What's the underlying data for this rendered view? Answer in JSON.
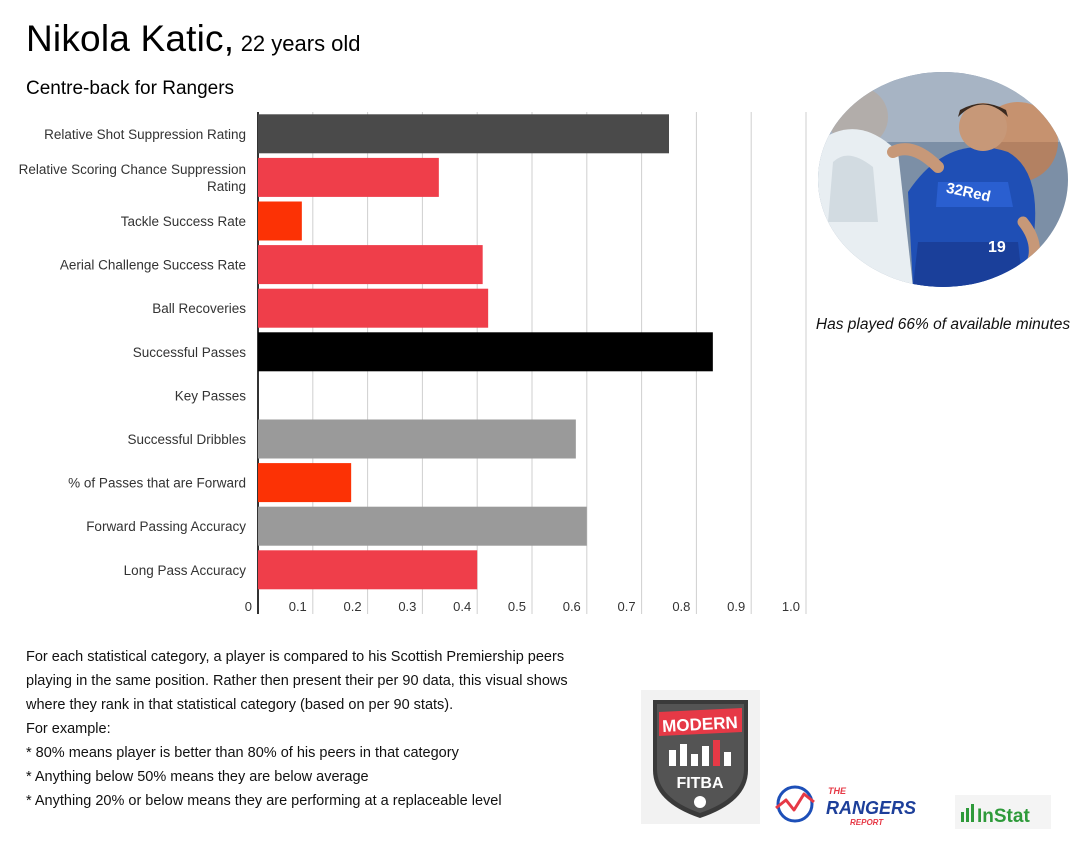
{
  "header": {
    "player_name": "Nikola Katic,",
    "player_age": "22 years old",
    "subtitle": "Centre-back for Rangers"
  },
  "sidebar": {
    "minutes_note": "Has played 66% of available minutes"
  },
  "footer": {
    "explanation_lines": [
      "For each statistical category, a player is compared to his Scottish Premiership peers",
      "playing in the same position.  Rather then present their per 90 data, this visual shows",
      "where they rank in that statistical category (based on per 90 stats).",
      "For example:",
      "* 80% means player is better than 80% of his peers in that category",
      "* Anything below 50% means they are below average",
      "* Anything 20% or below means they are performing at a replaceable level"
    ]
  },
  "logos": {
    "modern_fitba_top": "MODERN",
    "modern_fitba_bottom": "FITBA",
    "rangers_report_top": "THE",
    "rangers_report_main": "RANGERS",
    "rangers_report_bottom": "REPORT",
    "instat": "InStat"
  },
  "chart_data": {
    "type": "bar",
    "orientation": "horizontal",
    "categories": [
      "Relative Shot Suppression Rating",
      "Relative Scoring Chance Suppression Rating",
      "Tackle Success Rate",
      "Aerial Challenge Success Rate",
      "Ball Recoveries",
      "Successful Passes",
      "Key Passes",
      "Successful Dribbles",
      "% of Passes that are Forward",
      "Forward Passing Accuracy",
      "Long Pass Accuracy"
    ],
    "values": [
      0.75,
      0.33,
      0.08,
      0.41,
      0.42,
      0.83,
      0.0,
      0.58,
      0.17,
      0.6,
      0.4
    ],
    "colors": [
      "#4a4a4a",
      "#ef3e4a",
      "#fc3205",
      "#ef3e4a",
      "#ef3e4a",
      "#000000",
      "#9a9a9a",
      "#9a9a9a",
      "#fc3205",
      "#9a9a9a",
      "#ef3e4a"
    ],
    "xlim": [
      0,
      1.0
    ],
    "ticks": [
      "0",
      "0.1",
      "0.2",
      "0.3",
      "0.4",
      "0.5",
      "0.6",
      "0.7",
      "0.8",
      "0.9",
      "1.0"
    ],
    "grid": true,
    "title": "",
    "xlabel": "",
    "ylabel": ""
  }
}
